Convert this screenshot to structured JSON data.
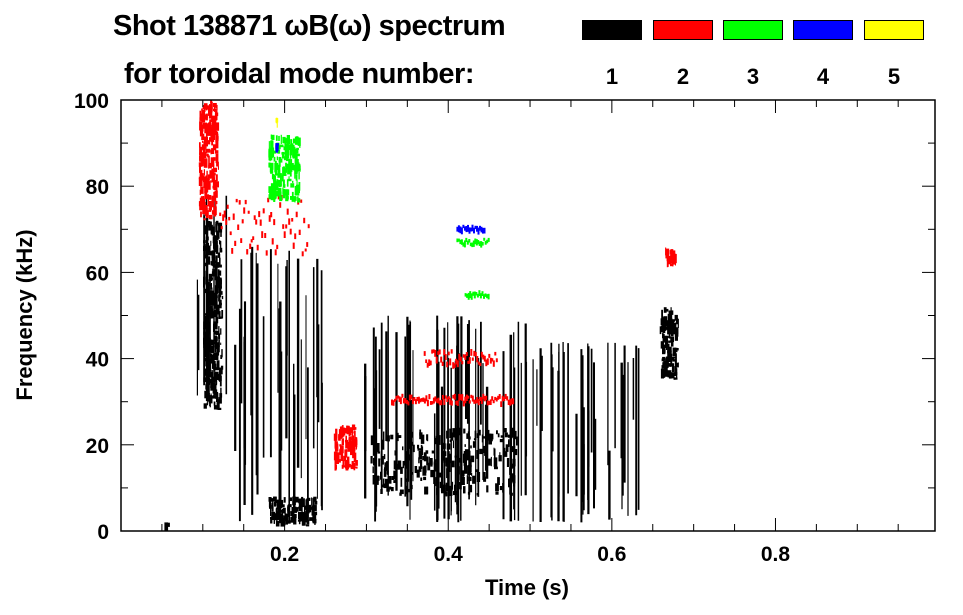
{
  "chart_data": {
    "type": "heatmap",
    "title": "Shot 138871 ωB(ω) spectrum",
    "subtitle": "for toroidal mode number:",
    "xlabel": "Time (s)",
    "ylabel": "Frequency (kHz)",
    "xlim": [
      0,
      0.995
    ],
    "ylim": [
      0,
      100
    ],
    "xticks": [
      0.2,
      0.4,
      0.6,
      0.8
    ],
    "xtick_labels": [
      "0.2",
      "0.4",
      "0.6",
      "0.8"
    ],
    "yticks": [
      0,
      20,
      40,
      60,
      80,
      100
    ],
    "ytick_labels": [
      "0",
      "20",
      "40",
      "60",
      "80",
      "100"
    ],
    "legend": {
      "placement": "top-right",
      "entries": [
        {
          "label": "1",
          "color": "#000000"
        },
        {
          "label": "2",
          "color": "#ff0000"
        },
        {
          "label": "3",
          "color": "#00ff00"
        },
        {
          "label": "4",
          "color": "#0000ff"
        },
        {
          "label": "5",
          "color": "#ffff00"
        }
      ]
    },
    "regions": [
      {
        "mode": 1,
        "kind": "blob",
        "t": [
          0.1,
          0.125
        ],
        "f": [
          28,
          72
        ]
      },
      {
        "mode": 1,
        "kind": "streaks",
        "t": [
          0.09,
          0.13
        ],
        "f": [
          30,
          78
        ]
      },
      {
        "mode": 1,
        "kind": "streaks",
        "t": [
          0.13,
          0.25
        ],
        "f": [
          2,
          66
        ]
      },
      {
        "mode": 1,
        "kind": "blob",
        "t": [
          0.18,
          0.24
        ],
        "f": [
          1,
          8
        ]
      },
      {
        "mode": 1,
        "kind": "streaks",
        "t": [
          0.295,
          0.5
        ],
        "f": [
          2,
          50
        ]
      },
      {
        "mode": 1,
        "kind": "blob",
        "t": [
          0.305,
          0.485
        ],
        "f": [
          8,
          24
        ]
      },
      {
        "mode": 1,
        "kind": "streaks",
        "t": [
          0.5,
          0.64
        ],
        "f": [
          2,
          44
        ]
      },
      {
        "mode": 1,
        "kind": "blob",
        "t": [
          0.658,
          0.682
        ],
        "f": [
          35,
          52
        ]
      },
      {
        "mode": 1,
        "kind": "blob",
        "t": [
          0.05,
          0.06
        ],
        "f": [
          1,
          2
        ]
      },
      {
        "mode": 2,
        "kind": "blob",
        "t": [
          0.095,
          0.12
        ],
        "f": [
          72,
          100
        ]
      },
      {
        "mode": 2,
        "kind": "band",
        "t": [
          0.12,
          0.23
        ],
        "f": [
          60,
          82
        ]
      },
      {
        "mode": 2,
        "kind": "blob",
        "t": [
          0.26,
          0.29
        ],
        "f": [
          14,
          25
        ]
      },
      {
        "mode": 2,
        "kind": "band",
        "t": [
          0.33,
          0.48
        ],
        "f": [
          29,
          32
        ]
      },
      {
        "mode": 2,
        "kind": "band",
        "t": [
          0.37,
          0.46
        ],
        "f": [
          37,
          43
        ]
      },
      {
        "mode": 2,
        "kind": "blob",
        "t": [
          0.665,
          0.68
        ],
        "f": [
          61,
          66
        ]
      },
      {
        "mode": 3,
        "kind": "band",
        "t": [
          0.41,
          0.45
        ],
        "f": [
          66,
          68
        ]
      },
      {
        "mode": 3,
        "kind": "band",
        "t": [
          0.42,
          0.45
        ],
        "f": [
          54,
          56
        ]
      },
      {
        "mode": 3,
        "kind": "blob",
        "t": [
          0.18,
          0.22
        ],
        "f": [
          76,
          92
        ]
      },
      {
        "mode": 4,
        "kind": "band",
        "t": [
          0.41,
          0.445
        ],
        "f": [
          69.5,
          71
        ]
      },
      {
        "mode": 4,
        "kind": "blob",
        "t": [
          0.188,
          0.192
        ],
        "f": [
          88,
          90
        ]
      },
      {
        "mode": 5,
        "kind": "blob",
        "t": [
          0.188,
          0.192
        ],
        "f": [
          95,
          96
        ]
      }
    ]
  }
}
